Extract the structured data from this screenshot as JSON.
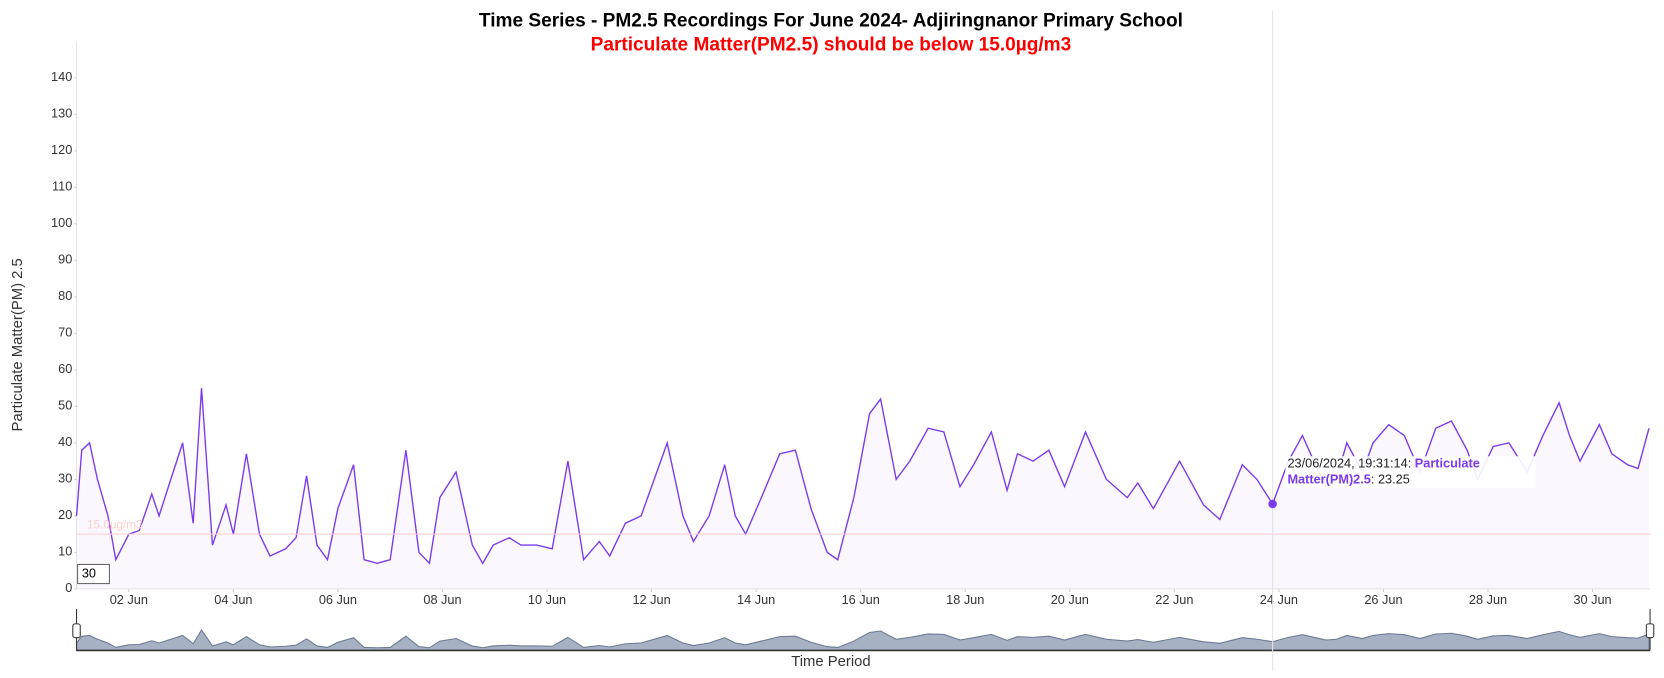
{
  "chart_data": {
    "type": "line",
    "title": "Time Series - PM2.5 Recordings For June 2024- Adjiringnanor Primary School",
    "subtitle": "Particulate Matter(PM2.5) should be below 15.0µg/m3",
    "x_label": "Time Period",
    "y_label": "Particulate Matter(PM) 2.5",
    "xlim": [
      1,
      31.1
    ],
    "ylim": [
      0,
      150
    ],
    "yticks": [
      0,
      10,
      20,
      30,
      40,
      50,
      60,
      70,
      80,
      90,
      100,
      110,
      120,
      130,
      140
    ],
    "xticks": [
      {
        "value": 2,
        "label": "02 Jun"
      },
      {
        "value": 4,
        "label": "04 Jun"
      },
      {
        "value": 6,
        "label": "06 Jun"
      },
      {
        "value": 8,
        "label": "08 Jun"
      },
      {
        "value": 10,
        "label": "10 Jun"
      },
      {
        "value": 12,
        "label": "12 Jun"
      },
      {
        "value": 14,
        "label": "14 Jun"
      },
      {
        "value": 16,
        "label": "16 Jun"
      },
      {
        "value": 18,
        "label": "18 Jun"
      },
      {
        "value": 20,
        "label": "20 Jun"
      },
      {
        "value": 22,
        "label": "22 Jun"
      },
      {
        "value": 24,
        "label": "24 Jun"
      },
      {
        "value": 26,
        "label": "26 Jun"
      },
      {
        "value": 28,
        "label": "28 Jun"
      },
      {
        "value": 30,
        "label": "30 Jun"
      }
    ],
    "threshold": {
      "value": 15,
      "label": "15.0µg/m3",
      "color": "#ffcccc"
    },
    "roll_period": 30,
    "x": [
      1.0,
      1.1,
      1.25,
      1.4,
      1.6,
      1.75,
      2.0,
      2.2,
      2.44,
      2.58,
      2.78,
      3.03,
      3.23,
      3.39,
      3.6,
      3.86,
      4.0,
      4.25,
      4.5,
      4.7,
      5.0,
      5.2,
      5.4,
      5.6,
      5.8,
      6.0,
      6.3,
      6.5,
      6.75,
      7.0,
      7.3,
      7.55,
      7.75,
      7.95,
      8.26,
      8.57,
      8.77,
      8.97,
      9.28,
      9.5,
      9.8,
      10.1,
      10.4,
      10.7,
      11.0,
      11.2,
      11.5,
      11.8,
      12.3,
      12.6,
      12.8,
      13.1,
      13.4,
      13.6,
      13.8,
      14.1,
      14.45,
      14.75,
      15.05,
      15.36,
      15.56,
      15.87,
      16.17,
      16.38,
      16.68,
      16.94,
      17.29,
      17.59,
      17.9,
      18.16,
      18.5,
      18.8,
      19.0,
      19.3,
      19.6,
      19.9,
      20.3,
      20.7,
      21.1,
      21.3,
      21.6,
      22.1,
      22.56,
      22.87,
      23.3,
      23.58,
      23.88,
      24.18,
      24.45,
      24.7,
      24.9,
      25.1,
      25.3,
      25.6,
      25.8,
      26.1,
      26.4,
      26.7,
      27.0,
      27.3,
      27.6,
      27.8,
      28.1,
      28.4,
      28.75,
      29.05,
      29.36,
      29.56,
      29.76,
      30.13,
      30.37,
      30.67,
      30.87,
      31.08
    ],
    "series": [
      {
        "name": "Particulate Matter(PM)2.5",
        "color": "#7c3aed",
        "values": [
          20,
          38,
          40,
          30,
          20,
          8,
          15,
          16,
          26,
          20,
          29,
          40,
          18,
          55,
          12,
          23,
          15,
          37,
          15,
          9,
          11,
          14,
          31,
          12,
          8,
          22,
          34,
          8,
          7,
          8,
          38,
          10,
          7,
          25,
          32,
          12,
          7,
          12,
          14,
          12,
          12,
          11,
          35,
          8,
          13,
          9,
          18,
          20,
          40,
          20,
          13,
          20,
          34,
          20,
          15,
          25,
          37,
          38,
          22,
          10,
          8,
          25,
          48,
          52,
          30,
          35,
          44,
          43,
          28,
          34,
          43,
          27,
          37,
          35,
          38,
          28,
          43,
          30,
          25,
          29,
          22,
          35,
          23,
          19,
          34,
          30,
          23.25,
          35,
          42,
          34,
          28,
          30,
          40,
          32,
          40,
          45,
          42,
          32,
          44,
          46,
          38,
          30,
          39,
          40,
          32,
          42,
          51,
          42,
          35,
          45,
          37,
          34,
          33,
          44
        ]
      }
    ],
    "tooltip": {
      "time": "23/06/2024, 19:31:14",
      "point": 86
    }
  }
}
